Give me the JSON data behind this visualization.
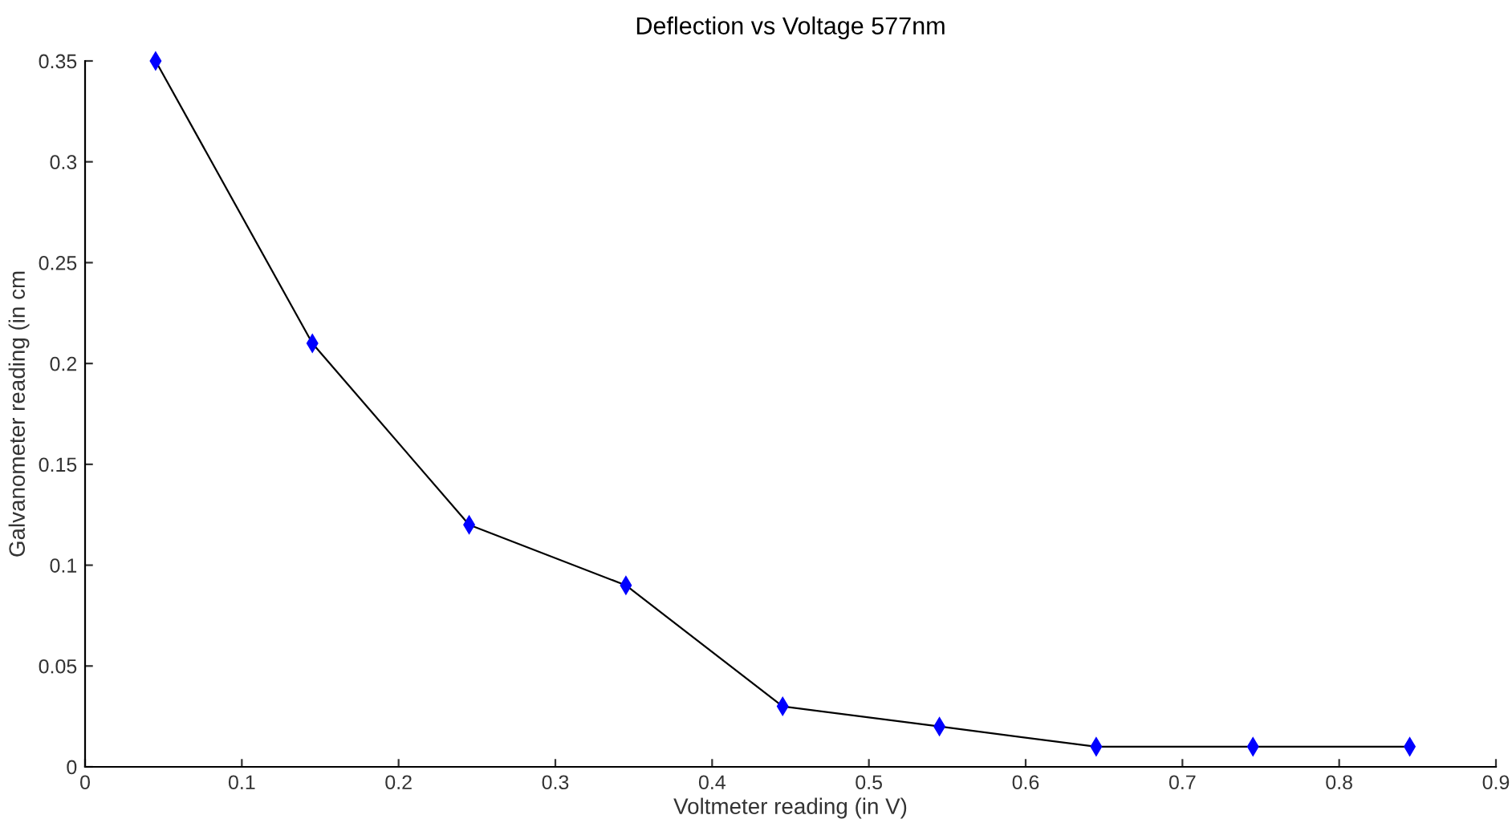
{
  "chart_data": {
    "type": "line",
    "title": "Deflection vs Voltage 577nm",
    "xlabel": "Voltmeter reading (in V)",
    "ylabel": "Galvanometer reading (in cm",
    "x": [
      0.045,
      0.145,
      0.245,
      0.345,
      0.445,
      0.545,
      0.645,
      0.745,
      0.845
    ],
    "series": [
      {
        "color": "#0000ff",
        "values": [
          0.35,
          0.21,
          0.12,
          0.09,
          0.03,
          0.02,
          0.01,
          0.01,
          0.01
        ]
      }
    ],
    "xlim": [
      0,
      0.9
    ],
    "xticks": [
      0,
      0.1,
      0.2,
      0.3,
      0.4,
      0.5,
      0.6,
      0.7,
      0.8,
      0.9
    ],
    "ylim": [
      0,
      0.35
    ],
    "yticks": [
      0,
      0.05,
      0.1,
      0.15,
      0.2,
      0.25,
      0.3,
      0.35
    ],
    "marker": "diamond",
    "line_style": "solid",
    "grid": false,
    "legend": false
  }
}
